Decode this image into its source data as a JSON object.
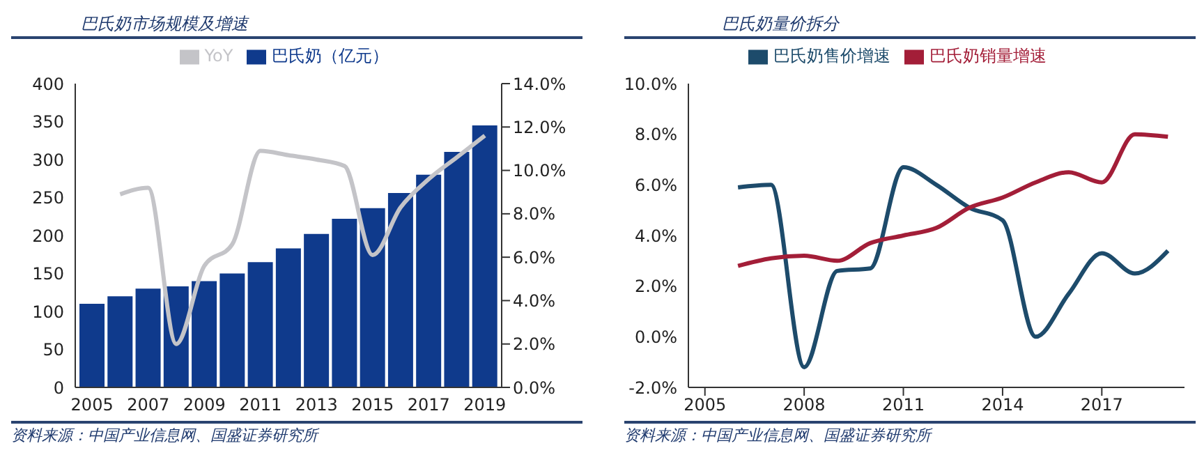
{
  "chart_data": [
    {
      "type": "bar",
      "title": "巴氏奶市场规模及增速",
      "categories": [
        "2005",
        null,
        "2007",
        null,
        "2009",
        null,
        "2011",
        null,
        "2013",
        null,
        "2015",
        null,
        "2017",
        null,
        "2019"
      ],
      "series": [
        {
          "name": "巴氏奶（亿元）",
          "color": "#0f3a8c",
          "values": [
            110,
            120,
            130,
            133,
            140,
            150,
            165,
            183,
            202,
            222,
            236,
            256,
            280,
            310,
            345
          ]
        },
        {
          "name": "YoY",
          "type": "line",
          "axis": "y2",
          "color": "#c4c4c8",
          "values": [
            null,
            8.9,
            9.2,
            2.0,
            5.6,
            6.6,
            10.9,
            10.7,
            10.5,
            10.2,
            6.1,
            8.3,
            9.6,
            10.6,
            11.6
          ]
        }
      ],
      "ylim": [
        0,
        400
      ],
      "yticks": [
        0,
        50,
        100,
        150,
        200,
        250,
        300,
        350,
        400
      ],
      "y2lim": [
        0,
        14
      ],
      "y2ticks": [
        {
          "value": 0,
          "label": "0.0%"
        },
        {
          "value": 2,
          "label": "2.0%"
        },
        {
          "value": 4,
          "label": "4.0%"
        },
        {
          "value": 6,
          "label": "6.0%"
        },
        {
          "value": 8,
          "label": "8.0%"
        },
        {
          "value": 10,
          "label": "10.0%"
        },
        {
          "value": 12,
          "label": "12.0%"
        },
        {
          "value": 14,
          "label": "14.0%"
        }
      ],
      "legend": "top",
      "marker": "none",
      "annotations": [
        "资料来源：中国产业信息网、国盛证券研究所"
      ]
    },
    {
      "type": "line",
      "title": "巴氏奶量价拆分",
      "x": [
        2006,
        2007,
        2008,
        2009,
        2010,
        2011,
        2012,
        2013,
        2014,
        2015,
        2016,
        2017,
        2018,
        2019
      ],
      "series": [
        {
          "name": "巴氏奶售价增速",
          "color": "#1d4b6b",
          "values": [
            5.9,
            6.0,
            -1.2,
            2.6,
            2.7,
            6.7,
            6.0,
            5.1,
            4.6,
            0.0,
            1.7,
            3.3,
            2.5,
            3.4
          ]
        },
        {
          "name": "巴氏奶销量增速",
          "color": "#a31e38",
          "values": [
            2.8,
            3.1,
            3.2,
            3.0,
            3.7,
            4.0,
            4.3,
            5.1,
            5.5,
            6.1,
            6.5,
            6.1,
            8.0,
            7.9
          ]
        }
      ],
      "xlim": [
        2004.5,
        2019.5
      ],
      "xticks": [
        2005,
        2008,
        2011,
        2014,
        2017
      ],
      "ylim": [
        -2,
        10
      ],
      "yticks": [
        {
          "value": -2,
          "label": "-2.0%"
        },
        {
          "value": 0,
          "label": "0.0%"
        },
        {
          "value": 2,
          "label": "2.0%"
        },
        {
          "value": 4,
          "label": "4.0%"
        },
        {
          "value": 6,
          "label": "6.0%"
        },
        {
          "value": 8,
          "label": "8.0%"
        },
        {
          "value": 10,
          "label": "10.0%"
        }
      ],
      "legend": "top",
      "marker": "none",
      "annotations": [
        "资料来源：中国产业信息网、国盛证券研究所"
      ]
    }
  ]
}
